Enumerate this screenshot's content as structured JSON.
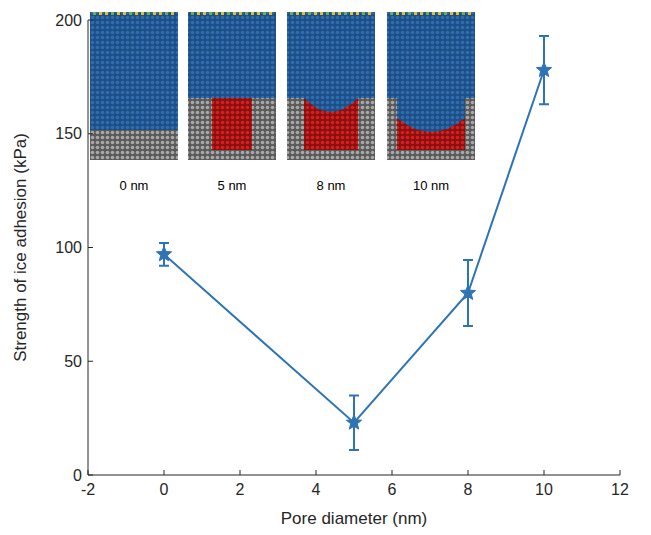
{
  "chart_data": {
    "type": "line",
    "x_label": "Pore diameter (nm)",
    "y_label": "Strength of ice adhesion (kPa)",
    "x": [
      0,
      5,
      8,
      10
    ],
    "values": [
      97,
      23,
      80,
      178
    ],
    "errors": [
      5,
      12,
      14.5,
      15
    ],
    "color": "#2e74b5",
    "marker": "star",
    "line_style": "solid",
    "xlim": [
      -2,
      12
    ],
    "xticks": [
      -2,
      0,
      2,
      4,
      6,
      8,
      10,
      12
    ],
    "ylim": [
      0,
      200
    ],
    "yticks": [
      0,
      50,
      100,
      150,
      200
    ],
    "grid": false,
    "annotations": [
      "0 nm",
      "5 nm",
      "8 nm",
      "10 nm"
    ]
  }
}
